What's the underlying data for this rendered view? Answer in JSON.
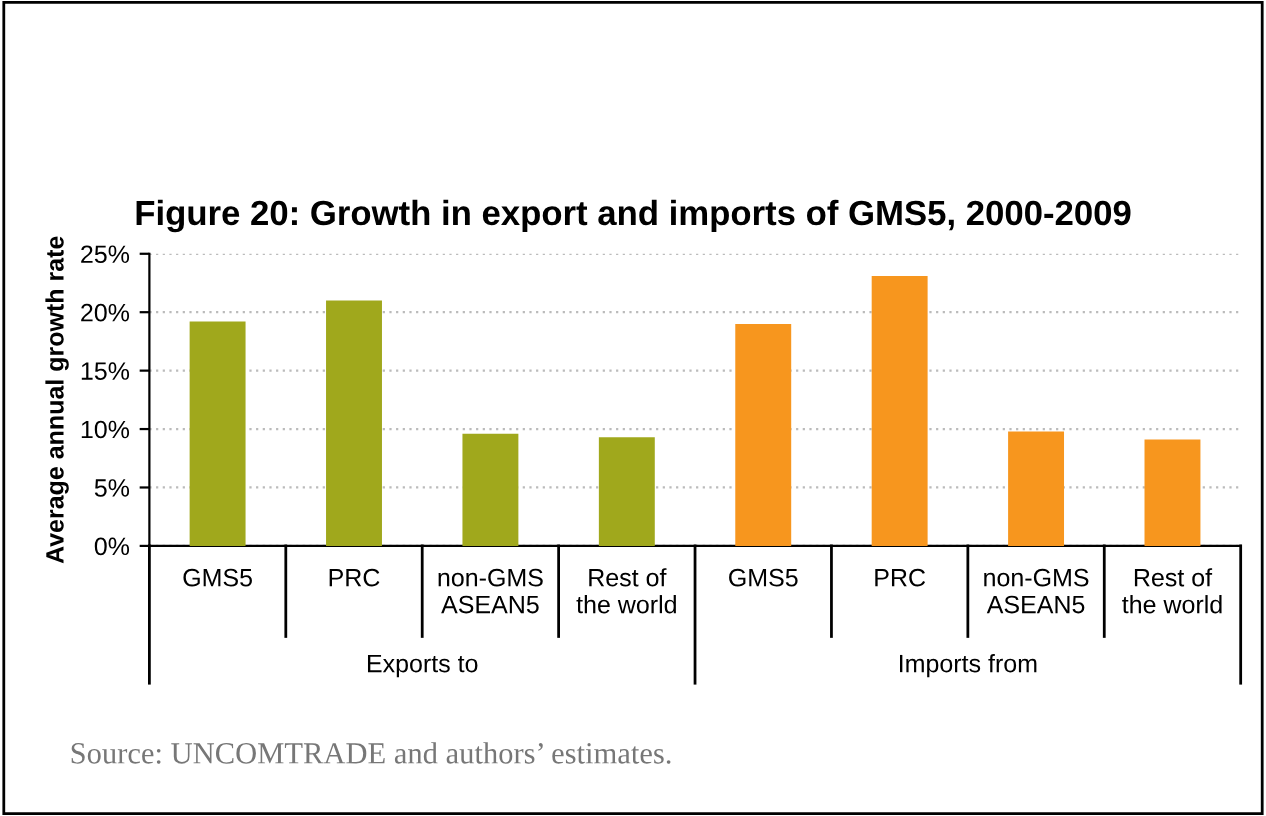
{
  "chart_data": {
    "type": "bar",
    "title": "Figure 20: Growth in export and imports of GMS5, 2000-2009",
    "ylabel": "Average annual growth rate",
    "categories": [
      "GMS5",
      "PRC",
      "non-GMS\nASEAN5",
      "Rest of\nthe world",
      "GMS5",
      "PRC",
      "non-GMS\nASEAN5",
      "Rest of\nthe world"
    ],
    "values": [
      19.2,
      21.0,
      9.6,
      9.3,
      19.0,
      23.1,
      9.8,
      9.1
    ],
    "colors": [
      "#a0a81c",
      "#a0a81c",
      "#a0a81c",
      "#a0a81c",
      "#f7961e",
      "#f7961e",
      "#f7961e",
      "#f7961e"
    ],
    "ylim": [
      0,
      25
    ],
    "yticks": [
      {
        "value": 0,
        "label": "0%"
      },
      {
        "value": 5,
        "label": "5%"
      },
      {
        "value": 10,
        "label": "10%"
      },
      {
        "value": 15,
        "label": "15%"
      },
      {
        "value": 20,
        "label": "20%"
      },
      {
        "value": 25,
        "label": "25%"
      }
    ],
    "grid": "y",
    "annotations": [
      "Exports to",
      "Imports from",
      "Source: UNCOMTRADE and authors’ estimates."
    ]
  }
}
